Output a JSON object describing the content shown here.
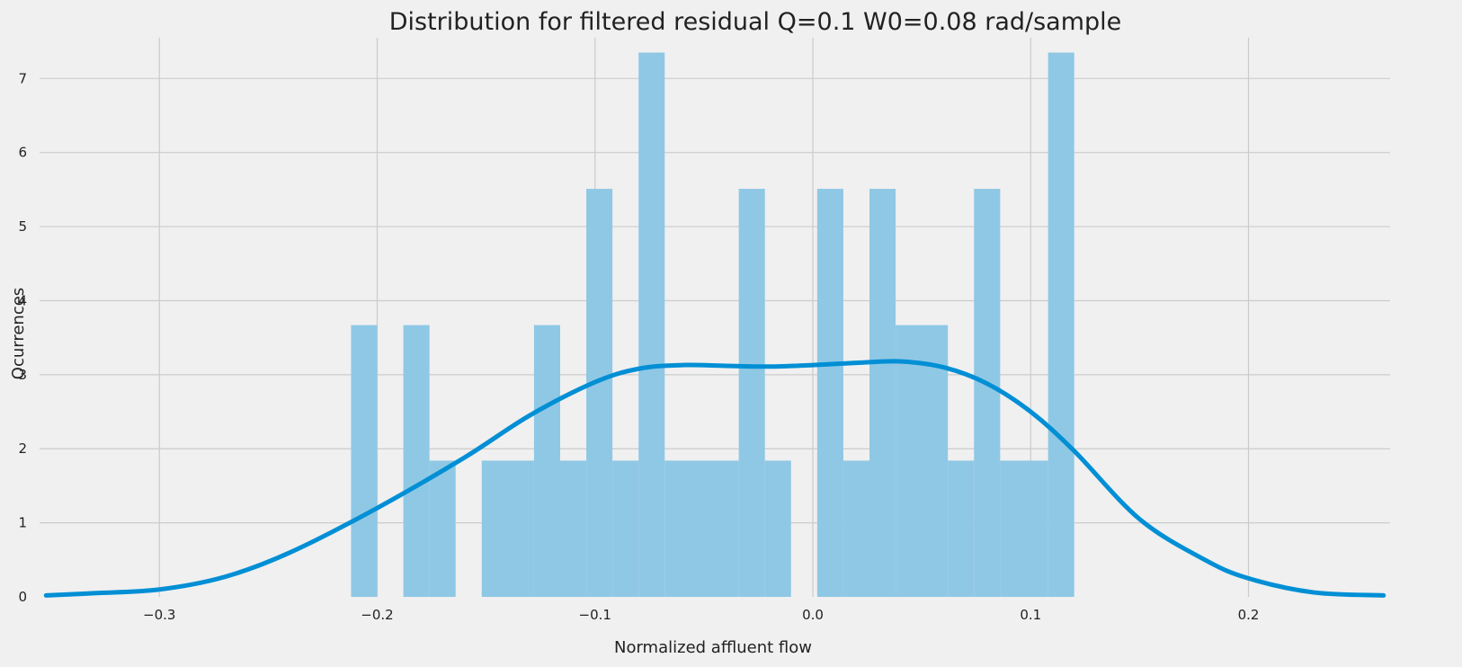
{
  "chart_data": {
    "type": "bar",
    "title": "Distribution for filtered residual Q=0.1 W0=0.08 rad/sample",
    "xlabel": "Normalized affluent flow",
    "ylabel": "Ocurrences",
    "xlim": [
      -0.355,
      0.265
    ],
    "ylim": [
      0,
      7.55
    ],
    "xticks": [
      -0.3,
      -0.2,
      -0.1,
      0.0,
      0.1,
      0.2
    ],
    "xtick_labels": [
      "−0.3",
      "−0.2",
      "−0.1",
      "0.0",
      "0.1",
      "0.2"
    ],
    "yticks": [
      0,
      1,
      2,
      3,
      4,
      5,
      6,
      7
    ],
    "ytick_labels": [
      "0",
      "1",
      "2",
      "3",
      "4",
      "5",
      "6",
      "7"
    ],
    "grid": true,
    "colors": {
      "background": "#f0f0f0",
      "bar": "#8fc8e5",
      "kde": "#008fd5",
      "grid": "#cbcbcb"
    },
    "histogram": {
      "bins": [
        {
          "x0": -0.212,
          "x1": -0.2,
          "y": 3.67
        },
        {
          "x0": -0.2,
          "x1": -0.188,
          "y": 0
        },
        {
          "x0": -0.188,
          "x1": -0.176,
          "y": 3.67
        },
        {
          "x0": -0.176,
          "x1": -0.164,
          "y": 1.84
        },
        {
          "x0": -0.164,
          "x1": -0.152,
          "y": 0
        },
        {
          "x0": -0.152,
          "x1": -0.128,
          "y": 1.84
        },
        {
          "x0": -0.128,
          "x1": -0.116,
          "y": 3.67
        },
        {
          "x0": -0.116,
          "x1": -0.104,
          "y": 1.84
        },
        {
          "x0": -0.104,
          "x1": -0.092,
          "y": 5.51
        },
        {
          "x0": -0.092,
          "x1": -0.08,
          "y": 1.84
        },
        {
          "x0": -0.08,
          "x1": -0.068,
          "y": 7.35
        },
        {
          "x0": -0.068,
          "x1": -0.034,
          "y": 1.84
        },
        {
          "x0": -0.034,
          "x1": -0.022,
          "y": 5.51
        },
        {
          "x0": -0.022,
          "x1": -0.01,
          "y": 1.84
        },
        {
          "x0": -0.01,
          "x1": 0.002,
          "y": 0
        },
        {
          "x0": 0.002,
          "x1": 0.014,
          "y": 5.51
        },
        {
          "x0": 0.014,
          "x1": 0.026,
          "y": 1.84
        },
        {
          "x0": 0.026,
          "x1": 0.038,
          "y": 5.51
        },
        {
          "x0": 0.038,
          "x1": 0.062,
          "y": 3.67
        },
        {
          "x0": 0.062,
          "x1": 0.074,
          "y": 1.84
        },
        {
          "x0": 0.074,
          "x1": 0.086,
          "y": 5.51
        },
        {
          "x0": 0.086,
          "x1": 0.108,
          "y": 1.84
        },
        {
          "x0": 0.108,
          "x1": 0.12,
          "y": 7.35
        }
      ]
    },
    "kde": {
      "x": [
        -0.352,
        -0.33,
        -0.3,
        -0.27,
        -0.24,
        -0.2,
        -0.16,
        -0.13,
        -0.1,
        -0.08,
        -0.06,
        -0.04,
        -0.02,
        0.0,
        0.02,
        0.04,
        0.06,
        0.08,
        0.1,
        0.12,
        0.15,
        0.18,
        0.2,
        0.23,
        0.262
      ],
      "y": [
        0.02,
        0.05,
        0.1,
        0.27,
        0.6,
        1.2,
        1.88,
        2.45,
        2.9,
        3.08,
        3.13,
        3.12,
        3.11,
        3.13,
        3.16,
        3.18,
        3.1,
        2.88,
        2.5,
        1.97,
        1.05,
        0.5,
        0.25,
        0.06,
        0.02
      ]
    }
  }
}
